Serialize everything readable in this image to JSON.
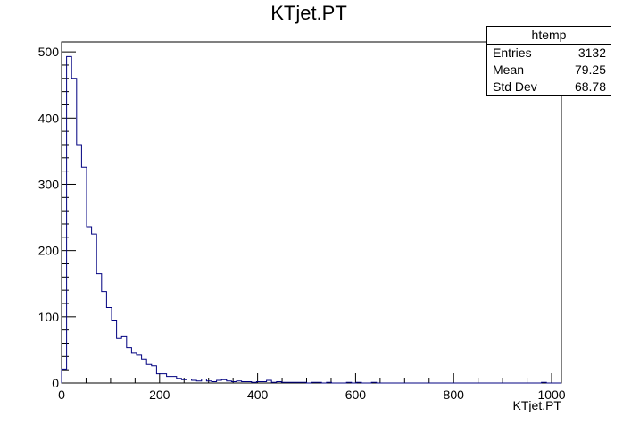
{
  "chart_data": {
    "type": "histogram",
    "title": "KTjet.PT",
    "xlabel": "KTjet.PT",
    "ylabel": "",
    "xlim": [
      0,
      1020
    ],
    "ylim": [
      0,
      515
    ],
    "bin_width": 10.2,
    "x_ticks": [
      0,
      200,
      400,
      600,
      800,
      1000
    ],
    "y_ticks": [
      0,
      100,
      200,
      300,
      400,
      500
    ],
    "line_color": "#000080",
    "values": [
      21,
      493,
      460,
      360,
      326,
      236,
      225,
      165,
      138,
      114,
      95,
      67,
      71,
      53,
      46,
      42,
      36,
      28,
      26,
      14,
      14,
      10,
      10,
      7,
      5,
      6,
      4,
      3,
      6,
      3,
      2,
      4,
      5,
      3,
      2,
      3,
      2,
      2,
      1,
      2,
      2,
      4,
      1,
      2,
      1,
      1,
      1,
      1,
      1,
      0,
      1,
      1,
      0,
      1,
      0,
      0,
      0,
      1,
      0,
      1,
      0,
      0,
      1,
      0,
      0,
      0,
      0,
      0,
      0,
      0,
      0,
      0,
      0,
      0,
      0,
      0,
      0,
      0,
      0,
      0,
      0,
      0,
      0,
      0,
      0,
      0,
      0,
      0,
      0,
      0,
      0,
      0,
      0,
      0,
      0,
      0,
      1,
      0,
      0,
      0
    ]
  },
  "stats": {
    "name": "htemp",
    "entries_label": "Entries",
    "entries": "3132",
    "mean_label": "Mean",
    "mean": "79.25",
    "stddev_label": "Std Dev",
    "stddev": "68.78"
  }
}
